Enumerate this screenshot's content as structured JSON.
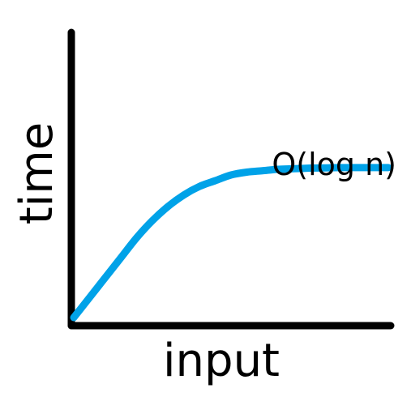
{
  "chart_data": {
    "type": "line",
    "title": "",
    "xlabel": "input",
    "ylabel": "time",
    "grid": false,
    "series": [
      {
        "name": "O(log n)",
        "x": [
          0,
          0.05,
          0.1,
          0.15,
          0.2,
          0.25,
          0.3,
          0.35,
          0.4,
          0.45,
          0.5,
          0.55,
          0.6,
          0.65,
          0.7,
          0.75,
          0.8,
          0.85,
          0.9,
          0.95,
          1.0
        ],
        "y": [
          0,
          0.07,
          0.14,
          0.21,
          0.28,
          0.34,
          0.39,
          0.43,
          0.46,
          0.48,
          0.5,
          0.51,
          0.515,
          0.52,
          0.522,
          0.524,
          0.525,
          0.526,
          0.526,
          0.526,
          0.526
        ],
        "color": "#00a2e8"
      }
    ],
    "xlim": [
      0,
      1
    ],
    "ylim": [
      0,
      1
    ],
    "axis_color": "#000000"
  }
}
